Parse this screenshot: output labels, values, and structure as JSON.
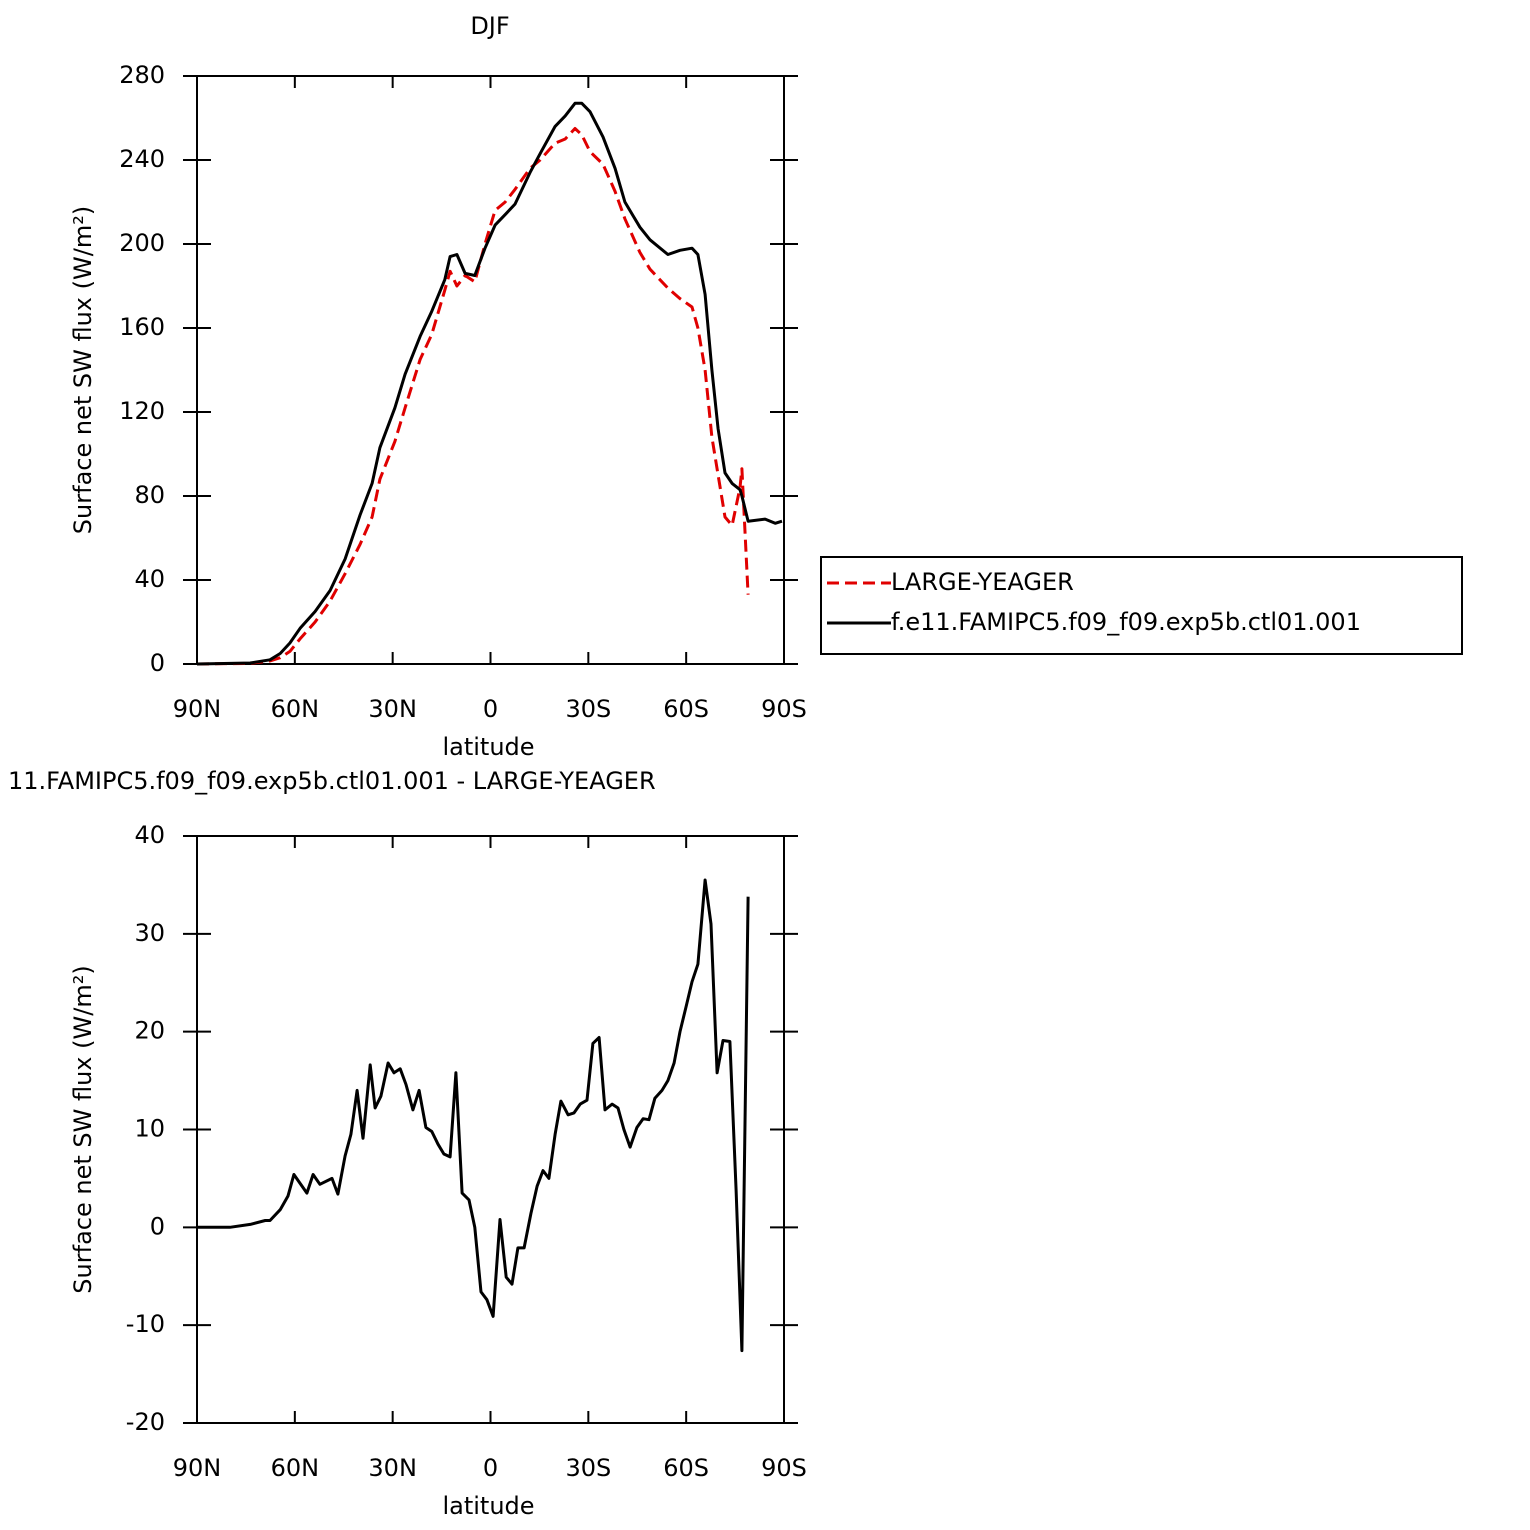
{
  "chart_data": [
    {
      "type": "line",
      "title": "DJF",
      "x_label": "latitude",
      "y_label": "Surface net SW flux (W/m²)",
      "xlim": [
        90,
        -90
      ],
      "ylim": [
        0,
        280
      ],
      "xticks": [
        {
          "value": 90,
          "label": "90N"
        },
        {
          "value": 60,
          "label": "60N"
        },
        {
          "value": 30,
          "label": "30N"
        },
        0,
        {
          "value": -30,
          "label": "30S"
        },
        {
          "value": -60,
          "label": "60S"
        },
        {
          "value": -90,
          "label": "90S"
        }
      ],
      "yticks": [
        0,
        40,
        80,
        120,
        160,
        200,
        240,
        280
      ],
      "legend": "right",
      "x": [
        90,
        73.7,
        67.6,
        64.5,
        61.5,
        58.4,
        53.8,
        49.2,
        44.6,
        40,
        36.3,
        33.9,
        29.3,
        26.2,
        21.6,
        18,
        14,
        12.4,
        10.3,
        7.8,
        4.8,
        1.7,
        -1.4,
        -4.5,
        -7.5,
        -12.1,
        -15.2,
        -19.8,
        -22.9,
        -25.9,
        -28,
        -30.5,
        -34.5,
        -38.2,
        -41.2,
        -45.8,
        -48.9,
        -54.4,
        -58.1,
        -61.8,
        -63.6,
        -65.8,
        -67.9,
        -69.8,
        -71.9,
        -74.1,
        -76.5,
        -77.1,
        -79,
        -84.2,
        -87.3,
        -89.4
      ],
      "series": [
        {
          "name": "LARGE-YEAGER",
          "color": "#e00000",
          "linestyle": "dashed",
          "values": [
            0,
            0.3,
            1.5,
            3,
            6,
            12,
            20,
            30,
            43,
            57,
            70,
            88,
            106,
            122,
            145,
            157,
            178,
            187,
            180,
            185,
            182,
            200,
            216,
            220,
            226,
            236,
            240,
            248,
            250,
            255,
            252,
            244,
            238,
            225,
            212,
            196,
            188,
            179,
            174,
            170,
            160,
            140,
            108,
            90,
            70,
            66,
            84,
            93,
            33,
            null,
            null,
            null
          ]
        },
        {
          "name": "f.e11.FAMIPC5.f09_f09.exp5b.ctl01.001",
          "color": "#000000",
          "linestyle": "solid",
          "values": [
            0,
            0.5,
            2,
            5,
            10,
            17,
            25,
            35,
            50,
            71,
            86,
            103,
            122,
            138,
            156,
            168,
            183,
            194,
            195,
            186,
            185,
            198,
            209,
            214,
            219,
            234,
            243,
            256,
            261,
            267,
            267,
            263,
            251,
            236,
            220,
            208,
            202,
            195,
            197,
            198,
            195,
            176,
            140,
            112,
            91,
            86,
            83,
            80,
            68,
            69,
            67,
            68
          ]
        }
      ]
    },
    {
      "type": "line",
      "title": "11.FAMIPC5.f09_f09.exp5b.ctl01.001 - LARGE-YEAGER",
      "x_label": "latitude",
      "y_label": "Surface net SW flux (W/m²)",
      "xlim": [
        90,
        -90
      ],
      "ylim": [
        -20,
        40
      ],
      "xticks": [
        {
          "value": 90,
          "label": "90N"
        },
        {
          "value": 60,
          "label": "60N"
        },
        {
          "value": 30,
          "label": "30N"
        },
        0,
        {
          "value": -30,
          "label": "30S"
        },
        {
          "value": -60,
          "label": "60S"
        },
        {
          "value": -90,
          "label": "90S"
        }
      ],
      "yticks": [
        -20,
        -10,
        0,
        10,
        20,
        30,
        40
      ],
      "x": [
        90,
        79.9,
        73.7,
        69.1,
        67.6,
        64.5,
        62.1,
        60.3,
        56.3,
        54.4,
        52.3,
        48.6,
        46.8,
        44.6,
        42.8,
        40.9,
        39.1,
        36.9,
        35.4,
        33.6,
        31.4,
        29.6,
        27.7,
        25.9,
        23.8,
        21.9,
        19.8,
        18,
        16.1,
        14.3,
        12.4,
        10.6,
        8.7,
        6.6,
        4.8,
        2.9,
        1.1,
        -0.8,
        -2.9,
        -4.8,
        -6.6,
        -8.4,
        -10.3,
        -12.4,
        -14.3,
        -16.1,
        -17.9,
        -19.8,
        -21.6,
        -23.8,
        -25.6,
        -27.5,
        -29.6,
        -31.4,
        -33.3,
        -35.1,
        -37.3,
        -39.1,
        -40.9,
        -42.8,
        -44.9,
        -46.8,
        -48.6,
        -50.4,
        -52.6,
        -54.4,
        -56.3,
        -58.1,
        -60,
        -61.8,
        -63.6,
        -65.8,
        -67.6,
        -69.5,
        -71.3,
        -73.4,
        -75.3,
        -77.1,
        -79
      ],
      "series": [
        {
          "color": "#000000",
          "linestyle": "solid",
          "values": [
            0,
            0,
            0.3,
            0.7,
            0.7,
            1.8,
            3.2,
            5.4,
            3.5,
            5.4,
            4.4,
            5,
            3.4,
            7.3,
            9.5,
            14,
            9.1,
            16.6,
            12.2,
            13.4,
            16.8,
            15.8,
            16.2,
            14.6,
            12,
            14,
            10.2,
            9.8,
            8.5,
            7.5,
            7.2,
            15.8,
            3.5,
            2.8,
            0,
            -6.6,
            -7.4,
            -9.1,
            0.8,
            -5.1,
            -5.8,
            -2.1,
            -2.1,
            1.4,
            4.2,
            5.8,
            5,
            9.5,
            12.9,
            11.5,
            11.7,
            12.6,
            13,
            18.8,
            19.4,
            12,
            12.6,
            12.2,
            10,
            8.2,
            10.2,
            11.1,
            11,
            13.2,
            14,
            15,
            16.8,
            20,
            22.6,
            25.1,
            26.9,
            35.5,
            31,
            15.8,
            19.1,
            19,
            3.8,
            -12.6,
            33.8
          ]
        }
      ]
    }
  ]
}
